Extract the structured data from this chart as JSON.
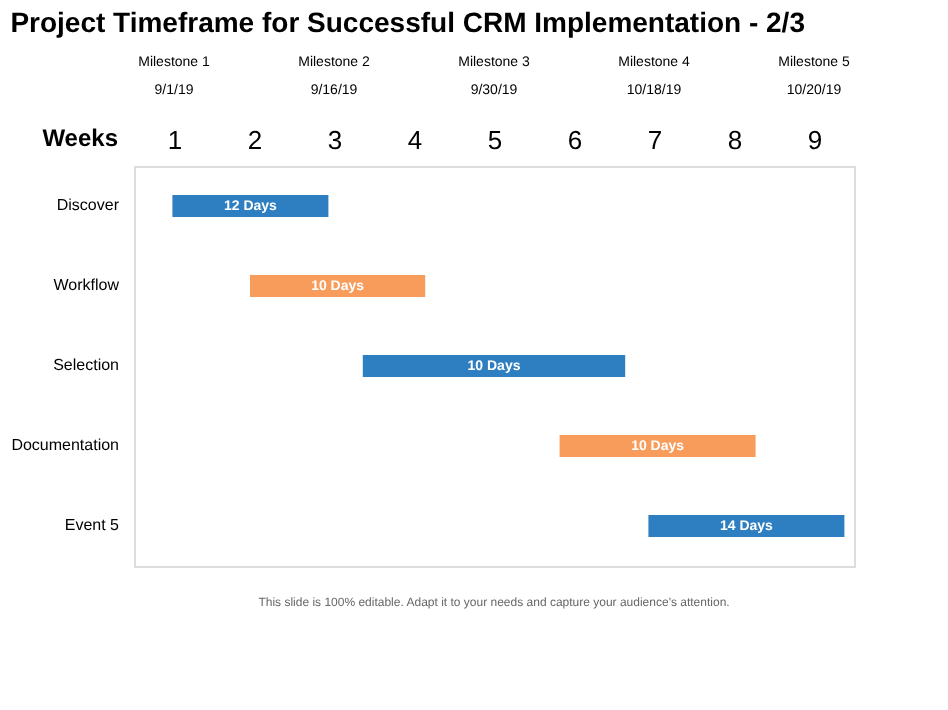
{
  "chart_data": {
    "type": "bar",
    "orientation": "horizontal",
    "title": "Project Timeframe for Successful CRM Implementation - 2/3",
    "xlabel": "Weeks",
    "categories": [
      "Discover",
      "Workflow",
      "Selection",
      "Documentation",
      "Event 5"
    ],
    "base": [
      0.98,
      1.95,
      3.36,
      5.82,
      6.93
    ],
    "values": [
      1.95,
      2.19,
      3.28,
      2.45,
      2.45
    ],
    "colors": [
      "#2e7fc1",
      "#f79c5a",
      "#2e7fc1",
      "#f79c5a",
      "#2e7fc1"
    ],
    "xlim": [
      0.5,
      9.5
    ],
    "xticks": [
      1,
      2,
      3,
      4,
      5,
      6,
      7,
      8,
      9
    ],
    "annotations": [
      {
        "text": "12 Days",
        "x": 1.955,
        "y": "Discover"
      },
      {
        "text": "10 Days",
        "x": 3.045,
        "y": "Workflow"
      },
      {
        "text": "10 Days",
        "x": 5.0,
        "y": "Selection"
      },
      {
        "text": "10 Days",
        "x": 7.045,
        "y": "Documentation"
      },
      {
        "text": "14 Days",
        "x": 8.155,
        "y": "Event 5"
      },
      "Milestone 1\n9/1/19",
      "Milestone 2\n9/16/19",
      "Milestone 3\n9/30/19",
      "Milestone 4\n10/18/19",
      "Milestone 5\n10/20/19",
      "This slide is 100% editable. Adapt it to your needs and capture your audience's attention."
    ]
  }
}
